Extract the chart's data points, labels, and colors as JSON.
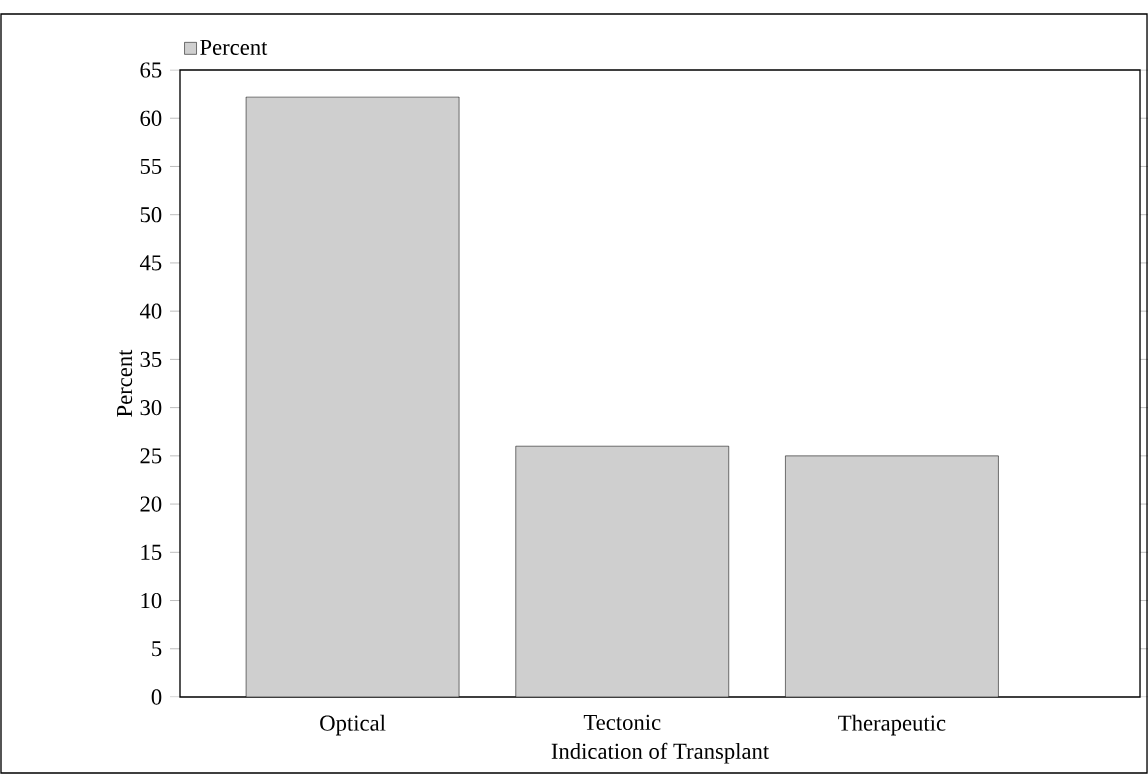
{
  "chart_data": {
    "type": "bar",
    "xlabel": "Indication of Transplant",
    "ylabel": "Percent",
    "categories": [
      "Optical",
      "Tectonic",
      "Therapeutic"
    ],
    "series": [
      {
        "name": "Percent",
        "color": "#cfcfcf",
        "values": [
          62.2,
          26.0,
          25.0
        ]
      }
    ],
    "ylim": [
      0,
      65
    ],
    "yticks": [
      0,
      5,
      10,
      15,
      20,
      25,
      30,
      35,
      40,
      45,
      50,
      55,
      60,
      65
    ],
    "legend": "top left",
    "grid": false
  }
}
